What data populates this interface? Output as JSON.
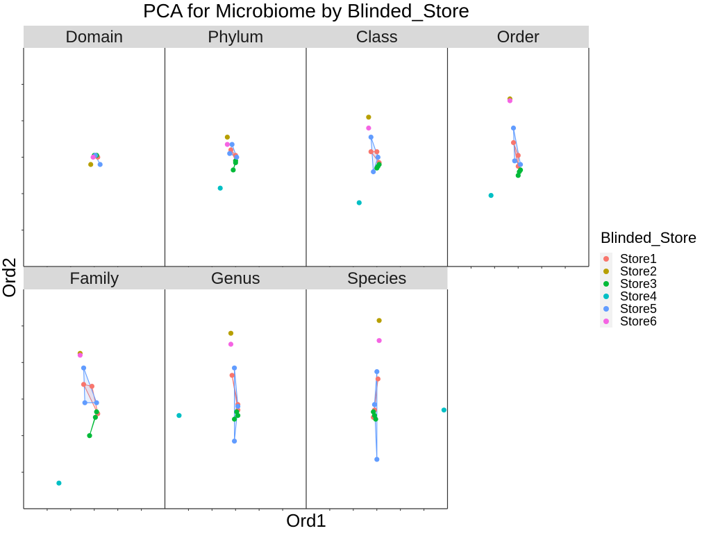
{
  "chart_data": {
    "type": "scatter",
    "title": "PCA for Microbiome by Blinded_Store",
    "xlabel": "Ord1",
    "ylabel": "Ord2",
    "xlim": [
      -0.6,
      0.6
    ],
    "ylim": [
      -0.6,
      0.6
    ],
    "grid": false,
    "hulls": true,
    "legend": {
      "title": "Blinded_Store",
      "position": "right",
      "entries": [
        {
          "name": "Store1",
          "color": "#F8766D"
        },
        {
          "name": "Store2",
          "color": "#B79F00"
        },
        {
          "name": "Store3",
          "color": "#00BA38"
        },
        {
          "name": "Store4",
          "color": "#00BFC4"
        },
        {
          "name": "Store5",
          "color": "#619CFF"
        },
        {
          "name": "Store6",
          "color": "#F564E3"
        }
      ]
    },
    "facets": [
      {
        "label": "Domain",
        "points": {
          "Store1": [
            [
              0.02,
              0.01
            ],
            [
              0.03,
              0.0
            ]
          ],
          "Store2": [
            [
              -0.03,
              -0.04
            ]
          ],
          "Store3": [
            [
              0.0,
              0.01
            ],
            [
              0.02,
              0.01
            ]
          ],
          "Store4": [
            [
              0.01,
              0.01
            ]
          ],
          "Store5": [
            [
              0.05,
              -0.04
            ],
            [
              0.01,
              0.01
            ]
          ],
          "Store6": [
            [
              -0.01,
              0.0
            ]
          ]
        }
      },
      {
        "label": "Phylum",
        "points": {
          "Store1": [
            [
              -0.04,
              0.04
            ],
            [
              0.0,
              0.01
            ],
            [
              0.0,
              -0.02
            ]
          ],
          "Store2": [
            [
              -0.07,
              0.11
            ]
          ],
          "Store3": [
            [
              -0.02,
              -0.07
            ],
            [
              0.0,
              -0.03
            ],
            [
              0.0,
              -0.02
            ]
          ],
          "Store4": [
            [
              -0.13,
              -0.17
            ]
          ],
          "Store5": [
            [
              -0.03,
              0.07
            ],
            [
              -0.05,
              0.02
            ],
            [
              0.01,
              0.0
            ]
          ],
          "Store6": [
            [
              -0.07,
              0.07
            ]
          ]
        }
      },
      {
        "label": "Class",
        "points": {
          "Store1": [
            [
              -0.05,
              0.03
            ],
            [
              0.0,
              0.03
            ],
            [
              0.02,
              -0.03
            ]
          ],
          "Store2": [
            [
              -0.07,
              0.22
            ]
          ],
          "Store3": [
            [
              0.0,
              -0.06
            ],
            [
              0.02,
              -0.04
            ],
            [
              0.01,
              -0.05
            ]
          ],
          "Store4": [
            [
              -0.15,
              -0.25
            ]
          ],
          "Store5": [
            [
              -0.05,
              0.11
            ],
            [
              -0.03,
              -0.08
            ],
            [
              0.01,
              0.0
            ]
          ],
          "Store6": [
            [
              -0.07,
              0.16
            ]
          ]
        }
      },
      {
        "label": "Order",
        "points": {
          "Store1": [
            [
              -0.04,
              0.08
            ],
            [
              0.0,
              0.01
            ],
            [
              0.0,
              -0.05
            ]
          ],
          "Store2": [
            [
              -0.07,
              0.32
            ]
          ],
          "Store3": [
            [
              0.0,
              -0.1
            ],
            [
              0.02,
              -0.07
            ],
            [
              0.01,
              -0.08
            ]
          ],
          "Store4": [
            [
              -0.23,
              -0.21
            ]
          ],
          "Store5": [
            [
              -0.04,
              0.16
            ],
            [
              -0.03,
              -0.02
            ],
            [
              0.02,
              -0.04
            ]
          ],
          "Store6": [
            [
              -0.07,
              0.31
            ]
          ]
        }
      },
      {
        "label": "Family",
        "points": {
          "Store1": [
            [
              -0.09,
              0.08
            ],
            [
              -0.02,
              0.07
            ],
            [
              0.03,
              -0.08
            ]
          ],
          "Store2": [
            [
              -0.12,
              0.25
            ]
          ],
          "Store3": [
            [
              -0.04,
              -0.2
            ],
            [
              0.01,
              -0.1
            ],
            [
              0.02,
              -0.07
            ]
          ],
          "Store4": [
            [
              -0.3,
              -0.46
            ]
          ],
          "Store5": [
            [
              -0.09,
              0.17
            ],
            [
              -0.08,
              -0.02
            ],
            [
              0.02,
              -0.02
            ]
          ],
          "Store6": [
            [
              -0.12,
              0.24
            ]
          ]
        }
      },
      {
        "label": "Genus",
        "points": {
          "Store1": [
            [
              -0.03,
              0.13
            ],
            [
              0.02,
              -0.03
            ],
            [
              0.02,
              -0.06
            ]
          ],
          "Store2": [
            [
              -0.04,
              0.36
            ]
          ],
          "Store3": [
            [
              -0.01,
              -0.11
            ],
            [
              0.02,
              -0.09
            ],
            [
              0.01,
              -0.07
            ]
          ],
          "Store4": [
            [
              -0.48,
              -0.09
            ]
          ],
          "Store5": [
            [
              -0.01,
              0.17
            ],
            [
              -0.01,
              -0.23
            ],
            [
              0.02,
              -0.04
            ]
          ],
          "Store6": [
            [
              -0.04,
              0.3
            ]
          ]
        }
      },
      {
        "label": "Species",
        "points": {
          "Store1": [
            [
              0.01,
              0.11
            ],
            [
              -0.02,
              -0.06
            ],
            [
              -0.03,
              -0.1
            ]
          ],
          "Store2": [
            [
              0.02,
              0.43
            ]
          ],
          "Store3": [
            [
              -0.03,
              -0.07
            ],
            [
              -0.01,
              -0.11
            ],
            [
              -0.02,
              -0.09
            ]
          ],
          "Store4": [
            [
              0.57,
              -0.06
            ]
          ],
          "Store5": [
            [
              0.0,
              0.15
            ],
            [
              -0.02,
              -0.03
            ],
            [
              0.0,
              -0.33
            ]
          ],
          "Store6": [
            [
              0.02,
              0.32
            ]
          ]
        }
      }
    ]
  }
}
